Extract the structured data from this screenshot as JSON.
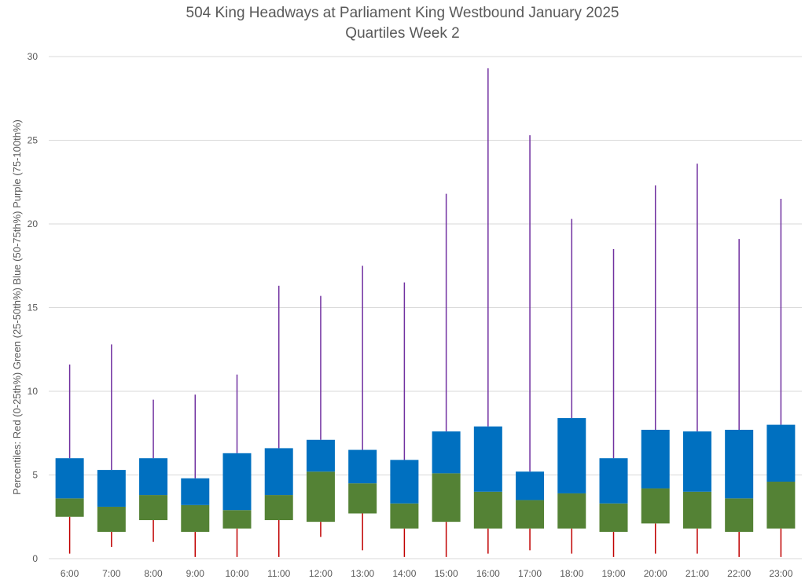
{
  "chart_data": {
    "type": "box",
    "title": "504 King Headways at Parliament King Westbound January 2025",
    "subtitle": "Quartiles Week 2",
    "ylabel": "Percentiles:  Red (0-25th%)  Green (25-50th%)  Blue (50-75th%)  Purple (75-100th%)",
    "xlabel": "",
    "ylim": [
      0,
      30
    ],
    "yticks": [
      0,
      5,
      10,
      15,
      20,
      25,
      30
    ],
    "grid": true,
    "categories": [
      "6:00",
      "7:00",
      "8:00",
      "9:00",
      "10:00",
      "11:00",
      "12:00",
      "13:00",
      "14:00",
      "15:00",
      "16:00",
      "17:00",
      "18:00",
      "19:00",
      "20:00",
      "21:00",
      "22:00",
      "23:00"
    ],
    "min": [
      0.3,
      0.7,
      1.0,
      0.1,
      0.1,
      0.1,
      1.3,
      0.5,
      0.1,
      0.1,
      0.3,
      0.5,
      0.3,
      0.1,
      0.3,
      0.3,
      0.1,
      0.1
    ],
    "q1": [
      2.5,
      1.6,
      2.3,
      1.6,
      1.8,
      2.3,
      2.2,
      2.7,
      1.8,
      2.2,
      1.8,
      1.8,
      1.8,
      1.6,
      2.1,
      1.8,
      1.6,
      1.8
    ],
    "median": [
      3.6,
      3.1,
      3.8,
      3.2,
      2.9,
      3.8,
      5.2,
      4.5,
      3.3,
      5.1,
      4.0,
      3.5,
      3.9,
      3.3,
      4.2,
      4.0,
      3.6,
      4.6
    ],
    "q3": [
      6.0,
      5.3,
      6.0,
      4.8,
      6.3,
      6.6,
      7.1,
      6.5,
      5.9,
      7.6,
      7.9,
      5.2,
      8.4,
      6.0,
      7.7,
      7.6,
      7.7,
      8.0
    ],
    "max": [
      11.6,
      12.8,
      9.5,
      9.8,
      11.0,
      16.3,
      15.7,
      17.5,
      16.5,
      21.8,
      29.3,
      25.3,
      20.3,
      18.5,
      22.3,
      23.6,
      19.1,
      21.5
    ],
    "colors": {
      "bottom_whisker": "#c00000",
      "lower_box": "#548235",
      "upper_box": "#0070c0",
      "top_whisker": "#7030a0"
    }
  }
}
